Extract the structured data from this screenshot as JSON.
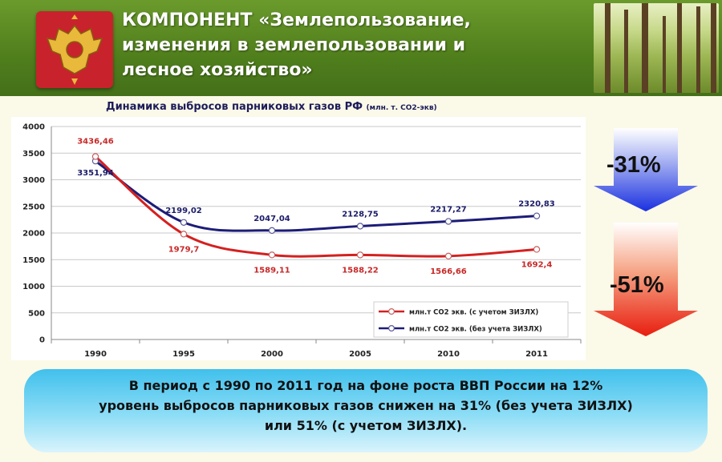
{
  "header": {
    "title_lines": [
      "КОМПОНЕНТ «Землепользование,",
      "изменения в землепользовании и",
      "лесное хозяйство»"
    ]
  },
  "chart_title": {
    "main": "Динамика выбросов парниковых газов РФ",
    "unit": "(млн. т. CO2-экв)"
  },
  "chart_data": {
    "type": "line",
    "title": "Динамика выбросов парниковых газов РФ (млн. т. CO2-экв)",
    "x": [
      "1990",
      "1995",
      "2000",
      "2005",
      "2010",
      "2011"
    ],
    "ylim": [
      0,
      4000
    ],
    "yticks": [
      "0",
      "500",
      "1000",
      "1500",
      "2000",
      "2500",
      "3000",
      "3500",
      "4000"
    ],
    "grid": true,
    "legend_position": "bottom-right",
    "series": [
      {
        "name": "млн.т CO2 экв. (с учетом ЗИЗЛХ)",
        "color": "#d42020",
        "values": [
          3436.46,
          1979.7,
          1589.11,
          1588.22,
          1566.66,
          1692.4
        ],
        "labels": [
          "3436,46",
          "1979,7",
          "1589,11",
          "1588,22",
          "1566,66",
          "1692,4"
        ]
      },
      {
        "name": "млн.т CO2 экв. (без учета ЗИЗЛХ)",
        "color": "#1c1c78",
        "values": [
          3351.94,
          2199.02,
          2047.04,
          2128.75,
          2217.27,
          2320.83
        ],
        "labels": [
          "3351,94",
          "2199,02",
          "2047,04",
          "2128,75",
          "2217,27",
          "2320,83"
        ]
      }
    ]
  },
  "arrows": {
    "blue_label": "-31%",
    "red_label": "-51%"
  },
  "summary": {
    "line1": "В период с 1990 по 2011 год на фоне роста ВВП России на 12%",
    "line2": "уровень выбросов парниковых газов снижен на 31% (без учета ЗИЗЛХ)",
    "line3": "или 51% (с учетом ЗИЗЛХ)."
  }
}
